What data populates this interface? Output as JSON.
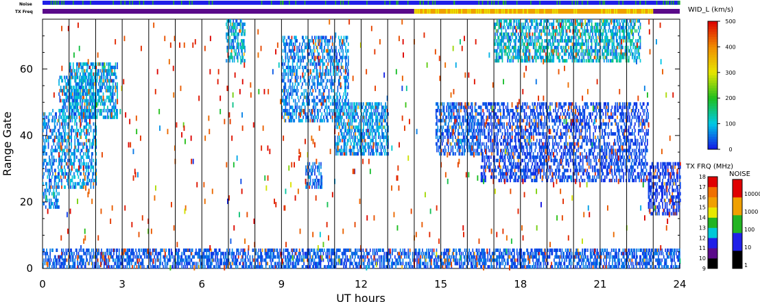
{
  "chart_data": {
    "type": "heatmap",
    "xlabel": "UT hours",
    "ylabel": "Range Gate",
    "x_range": [
      0,
      24
    ],
    "y_range": [
      0,
      75
    ],
    "x_ticks": [
      "0",
      "3",
      "6",
      "9",
      "12",
      "15",
      "18",
      "21",
      "24"
    ],
    "y_ticks": [
      "0",
      "20",
      "40",
      "60"
    ],
    "hour_grid_lines": true,
    "noise_label": "Noise",
    "txfreq_label": "TX Freq",
    "width_colorbar": {
      "title": "WID_L (km/s)",
      "min": 0,
      "max": 500,
      "ticks": [
        "0",
        "100",
        "200",
        "300",
        "400",
        "500"
      ]
    },
    "txfreq_colorbar": {
      "title": "TX FRQ (MHz)",
      "levels": [
        "9",
        "10",
        "11",
        "12",
        "13",
        "14",
        "15",
        "16",
        "17",
        "18"
      ],
      "colors": [
        "#000000",
        "#5a0a8a",
        "#1f1fe8",
        "#00c8d8",
        "#22b422",
        "#e8e800",
        "#f0a000",
        "#f07000",
        "#e00000"
      ]
    },
    "noise_colorbar": {
      "title": "NOISE",
      "levels": [
        "1",
        "10",
        "100",
        "1000",
        "10000"
      ],
      "colors": [
        "#000000",
        "#1f1fe8",
        "#22b422",
        "#f0a000",
        "#e00000"
      ]
    },
    "tx_freq_bar": {
      "segments": [
        {
          "start": 0,
          "end": 14.0,
          "value_mhz": 10
        },
        {
          "start": 14.0,
          "end": 23.0,
          "value_mhz": 14.5
        },
        {
          "start": 23.0,
          "end": 24,
          "value_mhz": 10
        }
      ]
    },
    "noise_bar": {
      "dominant": 10,
      "occasional": 100
    },
    "echo_regions": [
      {
        "label": "early echoes",
        "t_start": 0.0,
        "t_end": 0.6,
        "g_low": 18,
        "g_high": 48,
        "width_kms": 60
      },
      {
        "label": "rising band",
        "t_start": 0.6,
        "t_end": 2.0,
        "g_low": 24,
        "g_high": 58,
        "width_kms": 70
      },
      {
        "label": "rising band upper",
        "t_start": 1.0,
        "t_end": 2.8,
        "g_low": 45,
        "g_high": 62,
        "width_kms": 80
      },
      {
        "label": "patch 7 UT",
        "t_start": 6.9,
        "t_end": 7.6,
        "g_low": 62,
        "g_high": 75,
        "width_kms": 90
      },
      {
        "label": "descending band",
        "t_start": 9.0,
        "t_end": 11.5,
        "g_low": 44,
        "g_high": 70,
        "width_kms": 60
      },
      {
        "label": "descending band lower",
        "t_start": 11.0,
        "t_end": 13.0,
        "g_low": 34,
        "g_high": 50,
        "width_kms": 70
      },
      {
        "label": "patch 10 UT",
        "t_start": 9.9,
        "t_end": 10.5,
        "g_low": 24,
        "g_high": 32,
        "width_kms": 50
      },
      {
        "label": "afternoon band",
        "t_start": 14.8,
        "t_end": 16.5,
        "g_low": 34,
        "g_high": 50,
        "width_kms": 40
      },
      {
        "label": "broad band",
        "t_start": 16.5,
        "t_end": 22.8,
        "g_low": 26,
        "g_high": 50,
        "width_kms": 30
      },
      {
        "label": "late echoes",
        "t_start": 22.8,
        "t_end": 24.0,
        "g_low": 16,
        "g_high": 32,
        "width_kms": 20
      },
      {
        "label": "high patches",
        "t_start": 17.0,
        "t_end": 22.5,
        "g_low": 62,
        "g_high": 75,
        "width_kms": 100
      },
      {
        "label": "near-range echoes",
        "t_start": 0.0,
        "t_end": 24.0,
        "g_low": 0,
        "g_high": 6,
        "width_kms": 40
      }
    ],
    "sparse_noise_points": "scattered isolated points across the whole plot, mostly high width (red)"
  }
}
